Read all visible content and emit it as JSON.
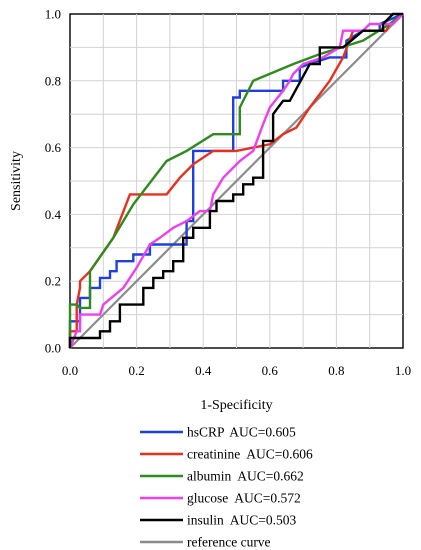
{
  "chart_data": {
    "type": "line",
    "xlabel": "1-Specificity",
    "ylabel": "Sensitivity",
    "xlim": [
      0,
      1
    ],
    "ylim": [
      0,
      1
    ],
    "grid": true,
    "legend_placement": "bottom",
    "xticks": [
      "0.0",
      "0.2",
      "0.4",
      "0.6",
      "0.8",
      "1.0"
    ],
    "yticks": [
      "0.0",
      "0.2",
      "0.4",
      "0.6",
      "0.8",
      "1.0"
    ],
    "series": [
      {
        "name": "hsCRP",
        "auc_label": "AUC=0.605",
        "color": "#1f3fe0",
        "points": [
          [
            0,
            0
          ],
          [
            0,
            0.08
          ],
          [
            0.03,
            0.08
          ],
          [
            0.03,
            0.15
          ],
          [
            0.06,
            0.15
          ],
          [
            0.06,
            0.18
          ],
          [
            0.09,
            0.18
          ],
          [
            0.09,
            0.21
          ],
          [
            0.12,
            0.21
          ],
          [
            0.12,
            0.23
          ],
          [
            0.14,
            0.23
          ],
          [
            0.14,
            0.26
          ],
          [
            0.19,
            0.26
          ],
          [
            0.19,
            0.28
          ],
          [
            0.24,
            0.28
          ],
          [
            0.24,
            0.31
          ],
          [
            0.35,
            0.31
          ],
          [
            0.35,
            0.38
          ],
          [
            0.37,
            0.38
          ],
          [
            0.37,
            0.59
          ],
          [
            0.49,
            0.59
          ],
          [
            0.49,
            0.75
          ],
          [
            0.51,
            0.75
          ],
          [
            0.51,
            0.77
          ],
          [
            0.64,
            0.77
          ],
          [
            0.64,
            0.8
          ],
          [
            0.69,
            0.8
          ],
          [
            0.69,
            0.84
          ],
          [
            0.78,
            0.87
          ],
          [
            0.83,
            0.87
          ],
          [
            0.83,
            0.92
          ],
          [
            0.88,
            0.95
          ],
          [
            0.93,
            0.95
          ],
          [
            0.93,
            0.97
          ],
          [
            1.0,
            1.0
          ]
        ]
      },
      {
        "name": "creatinine",
        "auc_label": "AUC=0.606",
        "color": "#e8301f",
        "points": [
          [
            0,
            0
          ],
          [
            0,
            0.05
          ],
          [
            0.02,
            0.05
          ],
          [
            0.02,
            0.13
          ],
          [
            0.03,
            0.18
          ],
          [
            0.03,
            0.2
          ],
          [
            0.06,
            0.23
          ],
          [
            0.13,
            0.33
          ],
          [
            0.18,
            0.46
          ],
          [
            0.21,
            0.46
          ],
          [
            0.21,
            0.46
          ],
          [
            0.29,
            0.46
          ],
          [
            0.33,
            0.51
          ],
          [
            0.37,
            0.55
          ],
          [
            0.43,
            0.59
          ],
          [
            0.5,
            0.59
          ],
          [
            0.55,
            0.6
          ],
          [
            0.6,
            0.61
          ],
          [
            0.64,
            0.64
          ],
          [
            0.68,
            0.66
          ],
          [
            0.72,
            0.72
          ],
          [
            0.78,
            0.8
          ],
          [
            0.82,
            0.87
          ],
          [
            0.85,
            0.95
          ],
          [
            0.95,
            0.95
          ],
          [
            0.96,
            0.97
          ],
          [
            1.0,
            1.0
          ]
        ]
      },
      {
        "name": "albumin",
        "auc_label": "AUC=0.662",
        "color": "#2e8b1e",
        "points": [
          [
            0,
            0
          ],
          [
            0,
            0.13
          ],
          [
            0.02,
            0.13
          ],
          [
            0.03,
            0.12
          ],
          [
            0.06,
            0.12
          ],
          [
            0.06,
            0.23
          ],
          [
            0.13,
            0.33
          ],
          [
            0.16,
            0.38
          ],
          [
            0.19,
            0.43
          ],
          [
            0.29,
            0.56
          ],
          [
            0.35,
            0.59
          ],
          [
            0.43,
            0.64
          ],
          [
            0.49,
            0.64
          ],
          [
            0.51,
            0.64
          ],
          [
            0.51,
            0.72
          ],
          [
            0.55,
            0.8
          ],
          [
            0.67,
            0.85
          ],
          [
            0.75,
            0.88
          ],
          [
            0.88,
            0.92
          ],
          [
            0.96,
            0.97
          ],
          [
            1.0,
            1.0
          ]
        ]
      },
      {
        "name": "glucose",
        "auc_label": "AUC=0.572",
        "color": "#ee3ff0",
        "points": [
          [
            0,
            0
          ],
          [
            0.02,
            0.05
          ],
          [
            0.03,
            0.05
          ],
          [
            0.03,
            0.1
          ],
          [
            0.09,
            0.1
          ],
          [
            0.1,
            0.13
          ],
          [
            0.16,
            0.18
          ],
          [
            0.2,
            0.24
          ],
          [
            0.24,
            0.31
          ],
          [
            0.27,
            0.33
          ],
          [
            0.31,
            0.36
          ],
          [
            0.35,
            0.38
          ],
          [
            0.39,
            0.41
          ],
          [
            0.42,
            0.41
          ],
          [
            0.43,
            0.46
          ],
          [
            0.46,
            0.51
          ],
          [
            0.49,
            0.54
          ],
          [
            0.51,
            0.56
          ],
          [
            0.55,
            0.59
          ],
          [
            0.58,
            0.67
          ],
          [
            0.6,
            0.72
          ],
          [
            0.64,
            0.77
          ],
          [
            0.66,
            0.8
          ],
          [
            0.67,
            0.82
          ],
          [
            0.7,
            0.85
          ],
          [
            0.76,
            0.87
          ],
          [
            0.81,
            0.9
          ],
          [
            0.82,
            0.95
          ],
          [
            0.88,
            0.95
          ],
          [
            0.9,
            0.97
          ],
          [
            0.97,
            0.97
          ],
          [
            1.0,
            1.0
          ]
        ]
      },
      {
        "name": "insulin",
        "auc_label": "AUC=0.503",
        "color": "#000000",
        "points": [
          [
            0,
            0
          ],
          [
            0,
            0.03
          ],
          [
            0.09,
            0.03
          ],
          [
            0.09,
            0.05
          ],
          [
            0.12,
            0.05
          ],
          [
            0.12,
            0.08
          ],
          [
            0.15,
            0.08
          ],
          [
            0.15,
            0.13
          ],
          [
            0.22,
            0.13
          ],
          [
            0.22,
            0.18
          ],
          [
            0.25,
            0.18
          ],
          [
            0.25,
            0.21
          ],
          [
            0.28,
            0.21
          ],
          [
            0.28,
            0.23
          ],
          [
            0.31,
            0.23
          ],
          [
            0.31,
            0.26
          ],
          [
            0.34,
            0.26
          ],
          [
            0.34,
            0.33
          ],
          [
            0.37,
            0.33
          ],
          [
            0.37,
            0.36
          ],
          [
            0.42,
            0.36
          ],
          [
            0.42,
            0.41
          ],
          [
            0.44,
            0.41
          ],
          [
            0.44,
            0.44
          ],
          [
            0.49,
            0.44
          ],
          [
            0.49,
            0.46
          ],
          [
            0.52,
            0.46
          ],
          [
            0.52,
            0.49
          ],
          [
            0.55,
            0.49
          ],
          [
            0.55,
            0.51
          ],
          [
            0.58,
            0.51
          ],
          [
            0.58,
            0.62
          ],
          [
            0.61,
            0.62
          ],
          [
            0.61,
            0.7
          ],
          [
            0.64,
            0.74
          ],
          [
            0.66,
            0.74
          ],
          [
            0.72,
            0.85
          ],
          [
            0.75,
            0.85
          ],
          [
            0.75,
            0.9
          ],
          [
            0.82,
            0.9
          ],
          [
            0.88,
            0.95
          ],
          [
            0.94,
            0.95
          ],
          [
            0.94,
            0.97
          ],
          [
            0.97,
            1.0
          ],
          [
            1.0,
            1.0
          ]
        ]
      },
      {
        "name": "reference curve",
        "auc_label": "",
        "color": "#8c8c8c",
        "points": [
          [
            0,
            0
          ],
          [
            1,
            1
          ]
        ]
      }
    ]
  }
}
